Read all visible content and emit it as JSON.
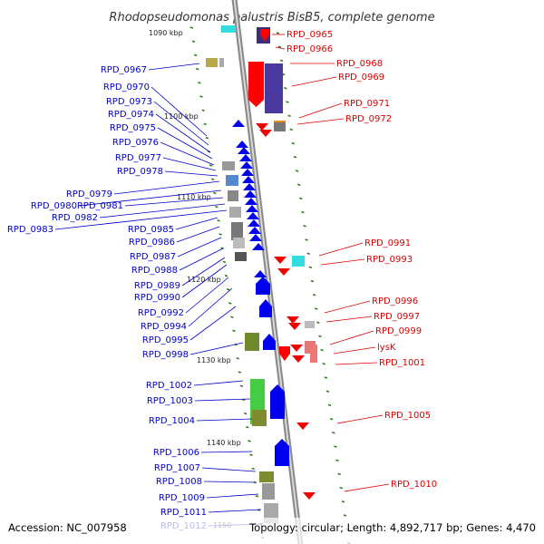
{
  "title": "Rhodopseudomonas palustris BisB5, complete genome",
  "footer": {
    "accession": "Accession: NC_007958",
    "summary": "Topology: circular; Length: 4,892,717 bp; Genes: 4,470"
  },
  "colors": {
    "forward_label": "#0000cc",
    "reverse_label": "#dd0000",
    "backbone": "#999999",
    "tick": "#2e7d1e"
  },
  "scale": {
    "ticks": [
      "1090 kbp",
      "1100 kbp",
      "1110 kbp",
      "1120 kbp",
      "1130 kbp",
      "1140 kbp",
      "1150"
    ]
  },
  "left_labels": [
    "RPD_0967",
    "RPD_0970",
    "RPD_0973",
    "RPD_0974",
    "RPD_0975",
    "RPD_0976",
    "RPD_0977",
    "RPD_0978",
    "RPD_0979",
    "RPD_0980",
    "RPD_0981",
    "RPD_0982",
    "RPD_0983",
    "RPD_0985",
    "RPD_0986",
    "RPD_0987",
    "RPD_0988",
    "RPD_0989",
    "RPD_0990",
    "RPD_0992",
    "RPD_0994",
    "RPD_0995",
    "RPD_0998",
    "RPD_1002",
    "RPD_1003",
    "RPD_1004",
    "RPD_1006",
    "RPD_1007",
    "RPD_1008",
    "RPD_1009",
    "RPD_1011",
    "RPD_1012"
  ],
  "right_labels": [
    "RPD_0965",
    "RPD_0966",
    "RPD_0968",
    "RPD_0969",
    "RPD_0971",
    "RPD_0972",
    "RPD_0991",
    "RPD_0993",
    "RPD_0996",
    "RPD_0997",
    "RPD_0999",
    "lysK",
    "RPD_1001",
    "RPD_1005",
    "RPD_1010"
  ]
}
